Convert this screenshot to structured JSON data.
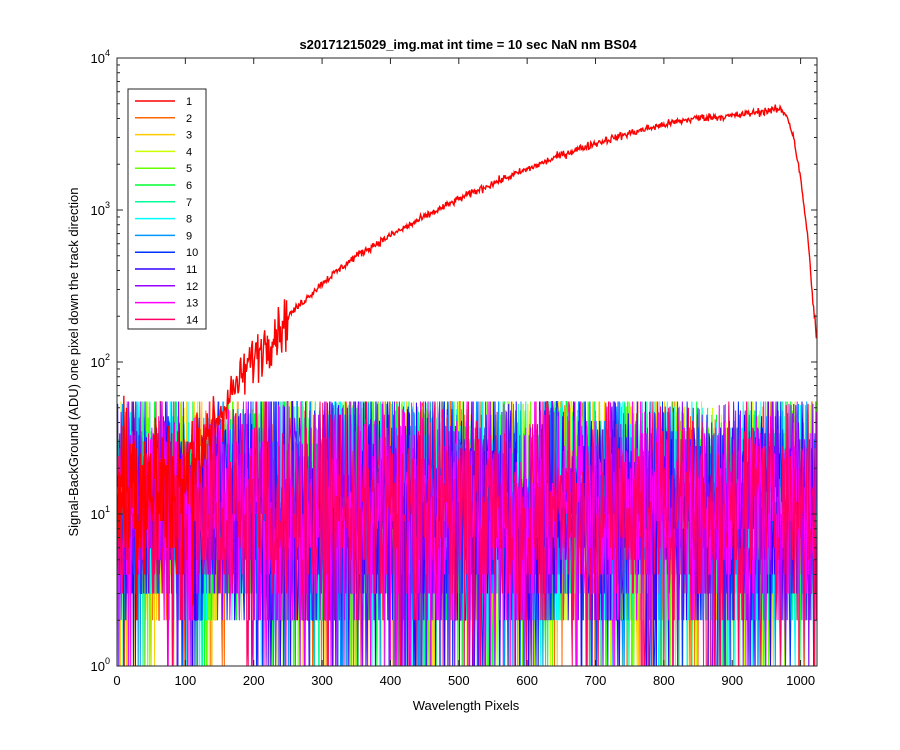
{
  "chart_data": {
    "type": "line",
    "title": "s20171215029_img.mat int time = 10 sec  NaN nm BS04",
    "xlabel": "Wavelength Pixels",
    "ylabel": "Signal-BackGround (ADU) one pixel down the track direction",
    "xlim": [
      0,
      1024
    ],
    "ylim": [
      1,
      10000
    ],
    "yscale": "log",
    "xticks": [
      "0",
      "100",
      "200",
      "300",
      "400",
      "500",
      "600",
      "700",
      "800",
      "900",
      "1000"
    ],
    "yticks": [
      {
        "base": "10",
        "exp": "0"
      },
      {
        "base": "10",
        "exp": "1"
      },
      {
        "base": "10",
        "exp": "2"
      },
      {
        "base": "10",
        "exp": "3"
      },
      {
        "base": "10",
        "exp": "4"
      }
    ],
    "legend_position": "upper-left",
    "grid": false,
    "series": [
      {
        "name": "1",
        "color": "#ff0000",
        "curve": {
          "x": [
            0,
            50,
            100,
            130,
            150,
            170,
            200,
            250,
            300,
            350,
            400,
            450,
            500,
            550,
            600,
            650,
            700,
            750,
            800,
            850,
            900,
            950,
            970,
            980,
            990,
            1000,
            1010,
            1020,
            1024
          ],
          "y": [
            13,
            15,
            20,
            30,
            45,
            65,
            110,
            200,
            330,
            500,
            680,
            900,
            1180,
            1500,
            1850,
            2300,
            2750,
            3200,
            3650,
            4050,
            4150,
            4500,
            4600,
            4200,
            3000,
            1600,
            700,
            200,
            100
          ]
        },
        "noise": {
          "min": 1,
          "max": 60,
          "typical": 15
        }
      },
      {
        "name": "2",
        "color": "#ff6600",
        "noise": {
          "min": 1,
          "max": 55,
          "typical": 12
        }
      },
      {
        "name": "3",
        "color": "#ffcc00",
        "noise": {
          "min": 1,
          "max": 55,
          "typical": 12
        }
      },
      {
        "name": "4",
        "color": "#ccff00",
        "noise": {
          "min": 1,
          "max": 55,
          "typical": 12
        }
      },
      {
        "name": "5",
        "color": "#66ff00",
        "noise": {
          "min": 1,
          "max": 55,
          "typical": 12
        }
      },
      {
        "name": "6",
        "color": "#00ff33",
        "noise": {
          "min": 1,
          "max": 55,
          "typical": 12
        }
      },
      {
        "name": "7",
        "color": "#00ff99",
        "noise": {
          "min": 1,
          "max": 55,
          "typical": 12
        }
      },
      {
        "name": "8",
        "color": "#00ffff",
        "noise": {
          "min": 1,
          "max": 55,
          "typical": 12
        }
      },
      {
        "name": "9",
        "color": "#0099ff",
        "noise": {
          "min": 1,
          "max": 55,
          "typical": 12
        }
      },
      {
        "name": "10",
        "color": "#0033ff",
        "noise": {
          "min": 1,
          "max": 55,
          "typical": 12
        }
      },
      {
        "name": "11",
        "color": "#3300ff",
        "noise": {
          "min": 1,
          "max": 55,
          "typical": 12
        }
      },
      {
        "name": "12",
        "color": "#9900ff",
        "noise": {
          "min": 1,
          "max": 55,
          "typical": 12
        }
      },
      {
        "name": "13",
        "color": "#ff00ff",
        "noise": {
          "min": 1,
          "max": 55,
          "typical": 12
        }
      },
      {
        "name": "14",
        "color": "#ff0066",
        "noise": {
          "min": 1,
          "max": 55,
          "typical": 12
        }
      }
    ]
  }
}
